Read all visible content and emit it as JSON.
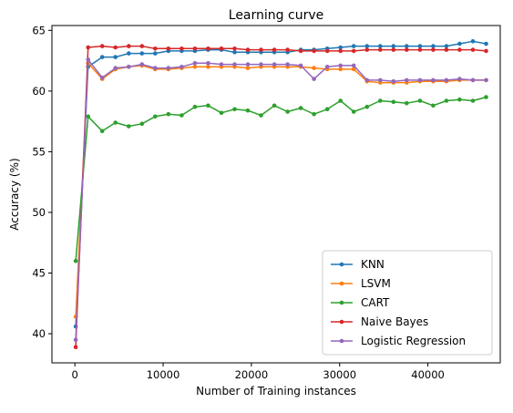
{
  "chart_data": {
    "type": "line",
    "title": "Learning curve",
    "xlabel": "Number of Training instances",
    "ylabel": "Accuracy (%)",
    "xlim": [
      -2600,
      48200
    ],
    "ylim": [
      37.6,
      65.4
    ],
    "xticks": [
      0,
      10000,
      20000,
      30000,
      40000
    ],
    "yticks": [
      40,
      45,
      50,
      55,
      60,
      65
    ],
    "legend_position": "bottom-right",
    "grid": false,
    "x": [
      100,
      1500,
      3100,
      4600,
      6100,
      7600,
      9100,
      10600,
      12100,
      13600,
      15100,
      16600,
      18100,
      19600,
      21100,
      22600,
      24100,
      25600,
      27100,
      28600,
      30100,
      31600,
      33100,
      34600,
      36100,
      37600,
      39100,
      40600,
      42100,
      43600,
      45100,
      46600
    ],
    "series": [
      {
        "name": "KNN",
        "color": "#1f77b4",
        "values": [
          40.6,
          62.0,
          62.8,
          62.8,
          63.1,
          63.1,
          63.1,
          63.3,
          63.3,
          63.3,
          63.4,
          63.4,
          63.2,
          63.2,
          63.2,
          63.2,
          63.2,
          63.4,
          63.4,
          63.5,
          63.6,
          63.7,
          63.7,
          63.7,
          63.7,
          63.7,
          63.7,
          63.7,
          63.7,
          63.9,
          64.1,
          63.9
        ]
      },
      {
        "name": "LSVM",
        "color": "#ff7f0e",
        "values": [
          41.4,
          62.3,
          61.0,
          61.8,
          62.0,
          62.1,
          61.8,
          61.8,
          61.9,
          62.0,
          62.0,
          62.0,
          62.0,
          61.9,
          62.0,
          62.0,
          62.0,
          62.0,
          61.9,
          61.8,
          61.8,
          61.8,
          60.8,
          60.7,
          60.7,
          60.7,
          60.8,
          60.8,
          60.8,
          60.9,
          60.9,
          60.9
        ]
      },
      {
        "name": "CART",
        "color": "#2ca02c",
        "values": [
          46.0,
          57.9,
          56.7,
          57.4,
          57.1,
          57.3,
          57.9,
          58.1,
          58.0,
          58.7,
          58.8,
          58.2,
          58.5,
          58.4,
          58.0,
          58.8,
          58.3,
          58.6,
          58.1,
          58.5,
          59.2,
          58.3,
          58.7,
          59.2,
          59.1,
          59.0,
          59.2,
          58.8,
          59.2,
          59.3,
          59.2,
          59.5
        ]
      },
      {
        "name": "Naive Bayes",
        "color": "#d62728",
        "values": [
          38.9,
          63.6,
          63.7,
          63.6,
          63.7,
          63.7,
          63.5,
          63.5,
          63.5,
          63.5,
          63.5,
          63.5,
          63.5,
          63.4,
          63.4,
          63.4,
          63.4,
          63.3,
          63.3,
          63.3,
          63.3,
          63.3,
          63.4,
          63.4,
          63.4,
          63.4,
          63.4,
          63.4,
          63.4,
          63.4,
          63.4,
          63.3
        ]
      },
      {
        "name": "Logistic Regression",
        "color": "#9467bd",
        "values": [
          39.5,
          62.6,
          61.1,
          61.9,
          62.0,
          62.2,
          61.9,
          61.9,
          62.0,
          62.3,
          62.3,
          62.2,
          62.2,
          62.2,
          62.2,
          62.2,
          62.2,
          62.1,
          61.0,
          62.0,
          62.1,
          62.1,
          60.9,
          60.9,
          60.8,
          60.9,
          60.9,
          60.9,
          60.9,
          61.0,
          60.9,
          60.9
        ]
      }
    ]
  }
}
